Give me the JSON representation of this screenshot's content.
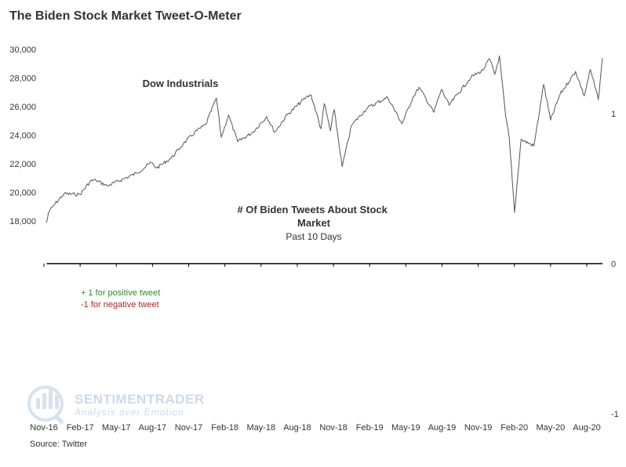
{
  "chart_data": {
    "type": "line",
    "title": "The Biden Stock Market Tweet-O-Meter",
    "source": "Source: Twitter",
    "watermark": {
      "brand": "SENTIMENTRADER",
      "tagline": "Analysis over Emotion"
    },
    "x_tick_labels": [
      "Nov-16",
      "Feb-17",
      "May-17",
      "Aug-17",
      "Nov-17",
      "Feb-18",
      "May-18",
      "Aug-18",
      "Nov-18",
      "Feb-19",
      "May-19",
      "Aug-19",
      "Nov-19",
      "Feb-20",
      "May-20",
      "Aug-20"
    ],
    "x_range": [
      "2016-11-01",
      "2020-11-10"
    ],
    "y_left": {
      "ticks": [
        18000,
        20000,
        22000,
        24000,
        26000,
        28000,
        30000
      ],
      "tick_labels": [
        "18,000",
        "20,000",
        "22,000",
        "24,000",
        "26,000",
        "28,000",
        "30,000"
      ],
      "range": [
        18000,
        30000
      ]
    },
    "y_right": {
      "ticks": [
        -1,
        0,
        1
      ],
      "tick_labels": [
        "-1",
        "0",
        "1"
      ],
      "range": [
        -1,
        1
      ]
    },
    "series": [
      {
        "name": "Dow Industrials",
        "axis": "left",
        "color": "#555555",
        "points": [
          [
            "2016-11-04",
            17900
          ],
          [
            "2016-11-09",
            18600
          ],
          [
            "2016-11-23",
            19100
          ],
          [
            "2016-12-20",
            19900
          ],
          [
            "2017-01-31",
            19850
          ],
          [
            "2017-02-28",
            20800
          ],
          [
            "2017-03-14",
            20850
          ],
          [
            "2017-04-13",
            20450
          ],
          [
            "2017-05-31",
            21000
          ],
          [
            "2017-06-30",
            21350
          ],
          [
            "2017-08-08",
            22100
          ],
          [
            "2017-08-21",
            21700
          ],
          [
            "2017-09-29",
            22400
          ],
          [
            "2017-10-31",
            23400
          ],
          [
            "2017-11-30",
            24200
          ],
          [
            "2017-12-29",
            24750
          ],
          [
            "2018-01-26",
            26600
          ],
          [
            "2018-02-08",
            23850
          ],
          [
            "2018-02-27",
            25400
          ],
          [
            "2018-03-23",
            23550
          ],
          [
            "2018-04-30",
            24150
          ],
          [
            "2018-06-08",
            25300
          ],
          [
            "2018-06-29",
            24200
          ],
          [
            "2018-07-31",
            25400
          ],
          [
            "2018-09-20",
            26650
          ],
          [
            "2018-10-03",
            26800
          ],
          [
            "2018-10-29",
            24450
          ],
          [
            "2018-11-07",
            26200
          ],
          [
            "2018-11-23",
            24300
          ],
          [
            "2018-12-03",
            25800
          ],
          [
            "2018-12-24",
            21800
          ],
          [
            "2019-01-18",
            24700
          ],
          [
            "2019-02-28",
            25900
          ],
          [
            "2019-04-23",
            26650
          ],
          [
            "2019-05-31",
            24800
          ],
          [
            "2019-06-28",
            26600
          ],
          [
            "2019-07-15",
            27350
          ],
          [
            "2019-08-23",
            25600
          ],
          [
            "2019-09-12",
            27200
          ],
          [
            "2019-10-02",
            26100
          ],
          [
            "2019-11-29",
            28050
          ],
          [
            "2019-12-31",
            28550
          ],
          [
            "2020-01-17",
            29350
          ],
          [
            "2020-01-31",
            28250
          ],
          [
            "2020-02-12",
            29550
          ],
          [
            "2020-02-28",
            25400
          ],
          [
            "2020-03-09",
            23800
          ],
          [
            "2020-03-23",
            18600
          ],
          [
            "2020-04-09",
            23700
          ],
          [
            "2020-05-13",
            23250
          ],
          [
            "2020-06-08",
            27550
          ],
          [
            "2020-06-26",
            25050
          ],
          [
            "2020-07-21",
            26850
          ],
          [
            "2020-08-31",
            28450
          ],
          [
            "2020-09-23",
            26750
          ],
          [
            "2020-10-09",
            28600
          ],
          [
            "2020-10-30",
            26500
          ],
          [
            "2020-11-10",
            29400
          ]
        ]
      },
      {
        "name": "# Of Biden Tweets About Stock Market",
        "subtitle": "Past 10 Days",
        "axis": "right",
        "color": "#000000",
        "points": [
          [
            "2016-11-04",
            0
          ],
          [
            "2020-11-10",
            0
          ]
        ]
      }
    ],
    "annotations": [
      "+ 1 for positive tweet",
      "-1 for negative tweet"
    ],
    "grid": false,
    "legend": "none"
  }
}
